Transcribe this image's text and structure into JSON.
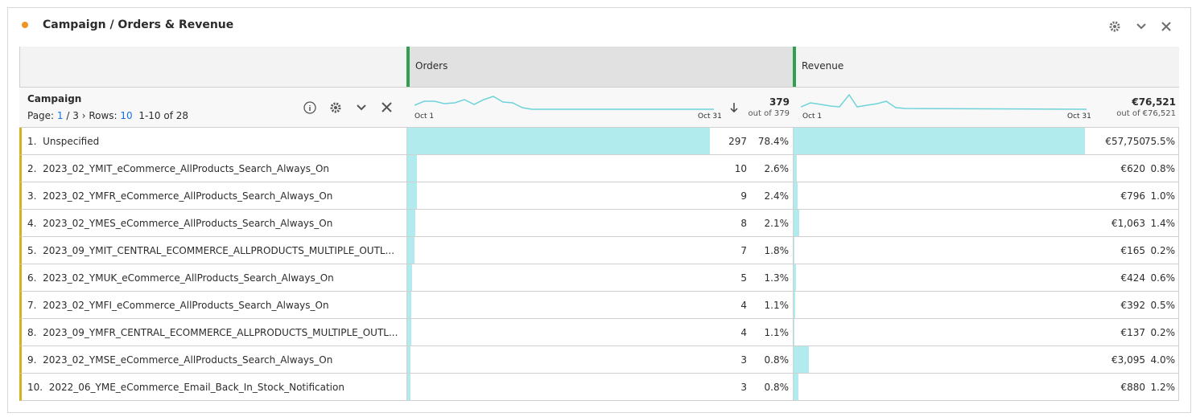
{
  "panel": {
    "title": "Campaign / Orders & Revenue"
  },
  "table": {
    "columns": [
      "Orders",
      "Revenue"
    ],
    "dimension": "Campaign",
    "pagination": {
      "page_label": "Page:",
      "page": "1",
      "page_total": "/ 3",
      "rows_label": "Rows:",
      "rows": "10",
      "range": "1-10 of 28"
    },
    "sparkline_start": "Oct 1",
    "sparkline_end": "Oct 31",
    "totals": [
      {
        "value": "379",
        "sub": "out of 379"
      },
      {
        "value": "€76,521",
        "sub": "out of €76,521"
      }
    ],
    "rows": [
      {
        "rank": "1.",
        "name": "Unspecified",
        "orders": 297,
        "orders_pct": {
          "value": 78.4,
          "label": "78.4%"
        },
        "revenue": {
          "value": 57750,
          "label": "€57,750"
        },
        "revenue_pct": {
          "value": 75.5,
          "label": "75.5%"
        }
      },
      {
        "rank": "2.",
        "name": "2023_02_YMIT_eCommerce_AllProducts_Search_Always_On",
        "orders": 10,
        "orders_pct": {
          "value": 2.6,
          "label": "2.6%"
        },
        "revenue": {
          "value": 620,
          "label": "€620"
        },
        "revenue_pct": {
          "value": 0.8,
          "label": "0.8%"
        }
      },
      {
        "rank": "3.",
        "name": "2023_02_YMFR_eCommerce_AllProducts_Search_Always_On",
        "orders": 9,
        "orders_pct": {
          "value": 2.4,
          "label": "2.4%"
        },
        "revenue": {
          "value": 796,
          "label": "€796"
        },
        "revenue_pct": {
          "value": 1.0,
          "label": "1.0%"
        }
      },
      {
        "rank": "4.",
        "name": "2023_02_YMES_eCommerce_AllProducts_Search_Always_On",
        "orders": 8,
        "orders_pct": {
          "value": 2.1,
          "label": "2.1%"
        },
        "revenue": {
          "value": 1063,
          "label": "€1,063"
        },
        "revenue_pct": {
          "value": 1.4,
          "label": "1.4%"
        }
      },
      {
        "rank": "5.",
        "name": "2023_09_YMIT_CENTRAL_ECOMMERCE_ALLPRODUCTS_MULTIPLE_OUTL...",
        "orders": 7,
        "orders_pct": {
          "value": 1.8,
          "label": "1.8%"
        },
        "revenue": {
          "value": 165,
          "label": "€165"
        },
        "revenue_pct": {
          "value": 0.2,
          "label": "0.2%"
        }
      },
      {
        "rank": "6.",
        "name": "2023_02_YMUK_eCommerce_AllProducts_Search_Always_On",
        "orders": 5,
        "orders_pct": {
          "value": 1.3,
          "label": "1.3%"
        },
        "revenue": {
          "value": 424,
          "label": "€424"
        },
        "revenue_pct": {
          "value": 0.6,
          "label": "0.6%"
        }
      },
      {
        "rank": "7.",
        "name": "2023_02_YMFI_eCommerce_AllProducts_Search_Always_On",
        "orders": 4,
        "orders_pct": {
          "value": 1.1,
          "label": "1.1%"
        },
        "revenue": {
          "value": 392,
          "label": "€392"
        },
        "revenue_pct": {
          "value": 0.5,
          "label": "0.5%"
        }
      },
      {
        "rank": "8.",
        "name": "2023_09_YMFR_CENTRAL_ECOMMERCE_ALLPRODUCTS_MULTIPLE_OUTL...",
        "orders": 4,
        "orders_pct": {
          "value": 1.1,
          "label": "1.1%"
        },
        "revenue": {
          "value": 137,
          "label": "€137"
        },
        "revenue_pct": {
          "value": 0.2,
          "label": "0.2%"
        }
      },
      {
        "rank": "9.",
        "name": "2023_02_YMSE_eCommerce_AllProducts_Search_Always_On",
        "orders": 3,
        "orders_pct": {
          "value": 0.8,
          "label": "0.8%"
        },
        "revenue": {
          "value": 3095,
          "label": "€3,095"
        },
        "revenue_pct": {
          "value": 4.0,
          "label": "4.0%"
        }
      },
      {
        "rank": "10.",
        "name": "2022_06_YME_eCommerce_Email_Back_In_Stock_Notification",
        "orders": 3,
        "orders_pct": {
          "value": 0.8,
          "label": "0.8%"
        },
        "revenue": {
          "value": 880,
          "label": "€880"
        },
        "revenue_pct": {
          "value": 1.2,
          "label": "1.2%"
        }
      }
    ]
  }
}
